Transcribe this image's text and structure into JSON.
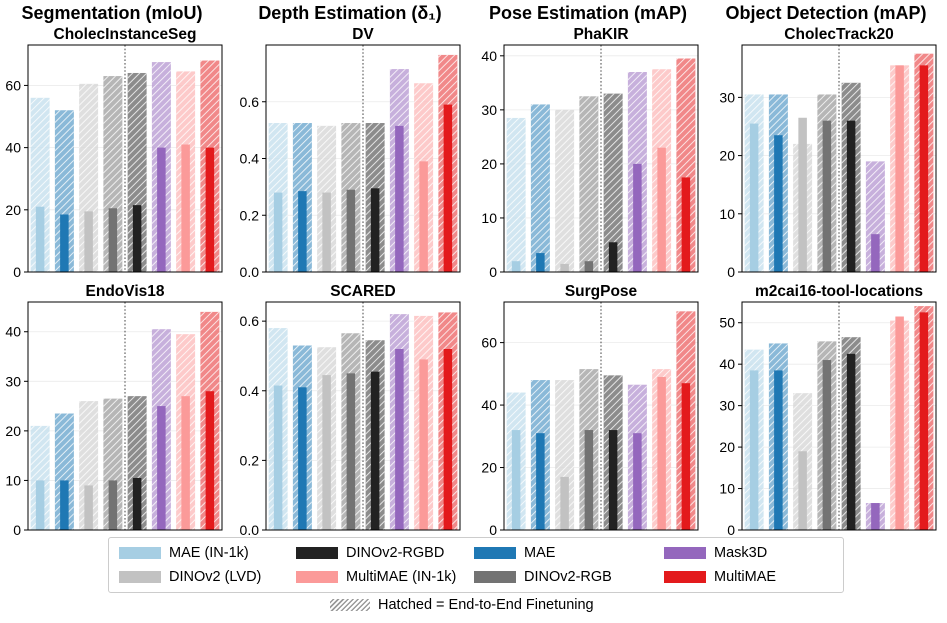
{
  "models": [
    {
      "key": "mae_in1k",
      "name": "MAE (IN-1k)",
      "color": "#a6cee3"
    },
    {
      "key": "mae",
      "name": "MAE",
      "color": "#1f78b4"
    },
    {
      "key": "dinov2_lvd",
      "name": "DINOv2 (LVD)",
      "color": "#c2c2c2"
    },
    {
      "key": "dinov2_rgb",
      "name": "DINOv2-RGB",
      "color": "#737373"
    },
    {
      "key": "dinov2_rgbd",
      "name": "DINOv2-RGBD",
      "color": "#222222"
    },
    {
      "key": "mask3d",
      "name": "Mask3D",
      "color": "#9467bd"
    },
    {
      "key": "multimae_in1k",
      "name": "MultiMAE (IN-1k)",
      "color": "#fb9a99"
    },
    {
      "key": "multimae",
      "name": "MultiMAE",
      "color": "#e31a1c"
    }
  ],
  "legend_order": [
    0,
    2,
    4,
    6,
    1,
    3,
    5,
    7
  ],
  "hatch_note": "Hatched = End-to-End Finetuning",
  "chart_data": [
    {
      "type": "bar",
      "row": 0,
      "col": 0,
      "header": "Segmentation (mIoU)",
      "title": "CholecInstanceSeg",
      "ylim": [
        0,
        73
      ],
      "yticks": [
        0,
        20,
        40,
        60
      ],
      "tick_decimals": 0,
      "divider_after": 4,
      "probe": [
        21,
        18.5,
        19.5,
        20.5,
        21.5,
        40,
        41,
        40
      ],
      "finetune": [
        56,
        52,
        60.5,
        63,
        64,
        67.5,
        64.5,
        68
      ]
    },
    {
      "type": "bar",
      "row": 0,
      "col": 1,
      "header": "Depth Estimation (δ₁)",
      "title": "DV",
      "ylim": [
        0,
        0.8
      ],
      "yticks": [
        0.0,
        0.2,
        0.4,
        0.6
      ],
      "tick_decimals": 1,
      "divider_after": 4,
      "probe": [
        0.28,
        0.285,
        0.28,
        0.29,
        0.295,
        0.515,
        0.39,
        0.59
      ],
      "finetune": [
        0.525,
        0.525,
        0.515,
        0.525,
        0.525,
        0.715,
        0.665,
        0.765
      ]
    },
    {
      "type": "bar",
      "row": 0,
      "col": 2,
      "header": "Pose Estimation (mAP)",
      "title": "PhaKIR",
      "ylim": [
        0,
        42
      ],
      "yticks": [
        0,
        10,
        20,
        30,
        40
      ],
      "tick_decimals": 0,
      "divider_after": 4,
      "probe": [
        2,
        3.5,
        1.5,
        2,
        5.5,
        20,
        23,
        17.5
      ],
      "finetune": [
        28.5,
        31,
        30,
        32.5,
        33,
        37,
        37.5,
        39.5
      ]
    },
    {
      "type": "bar",
      "row": 0,
      "col": 3,
      "header": "Object Detection (mAP)",
      "title": "CholecTrack20",
      "ylim": [
        0,
        39
      ],
      "yticks": [
        0,
        10,
        20,
        30
      ],
      "tick_decimals": 0,
      "divider_after": 4,
      "probe": [
        25.5,
        23.5,
        26.5,
        26,
        26,
        6.5,
        35.5,
        35.5
      ],
      "finetune": [
        30.5,
        30.5,
        22,
        30.5,
        32.5,
        19,
        35.5,
        37.5
      ]
    },
    {
      "type": "bar",
      "row": 1,
      "col": 0,
      "header": "",
      "title": "EndoVis18",
      "ylim": [
        0,
        46
      ],
      "yticks": [
        0,
        10,
        20,
        30,
        40
      ],
      "tick_decimals": 0,
      "divider_after": 4,
      "probe": [
        10,
        10,
        9,
        10,
        10.5,
        25,
        27,
        28
      ],
      "finetune": [
        21,
        23.5,
        26,
        26.5,
        27,
        40.5,
        39.5,
        44
      ]
    },
    {
      "type": "bar",
      "row": 1,
      "col": 1,
      "header": "",
      "title": "SCARED",
      "ylim": [
        0,
        0.655
      ],
      "yticks": [
        0.0,
        0.2,
        0.4,
        0.6
      ],
      "tick_decimals": 1,
      "divider_after": 4,
      "probe": [
        0.415,
        0.41,
        0.445,
        0.45,
        0.455,
        0.52,
        0.49,
        0.52
      ],
      "finetune": [
        0.58,
        0.53,
        0.525,
        0.565,
        0.545,
        0.62,
        0.615,
        0.625
      ]
    },
    {
      "type": "bar",
      "row": 1,
      "col": 2,
      "header": "",
      "title": "SurgPose",
      "ylim": [
        0,
        73
      ],
      "yticks": [
        0,
        20,
        40,
        60
      ],
      "tick_decimals": 0,
      "divider_after": 4,
      "probe": [
        32,
        31,
        17,
        32,
        32,
        31,
        49,
        47
      ],
      "finetune": [
        44,
        48,
        48,
        51.5,
        49.5,
        46.5,
        51.5,
        70
      ]
    },
    {
      "type": "bar",
      "row": 1,
      "col": 3,
      "header": "",
      "title": "m2cai16-tool-locations",
      "ylim": [
        0,
        55
      ],
      "yticks": [
        0,
        10,
        20,
        30,
        40,
        50
      ],
      "tick_decimals": 0,
      "divider_after": 4,
      "probe": [
        38.5,
        38.5,
        19,
        41,
        42.5,
        6.5,
        51.5,
        52.5
      ],
      "finetune": [
        43.5,
        45,
        33,
        45.5,
        46.5,
        6.5,
        50.5,
        54
      ]
    }
  ]
}
